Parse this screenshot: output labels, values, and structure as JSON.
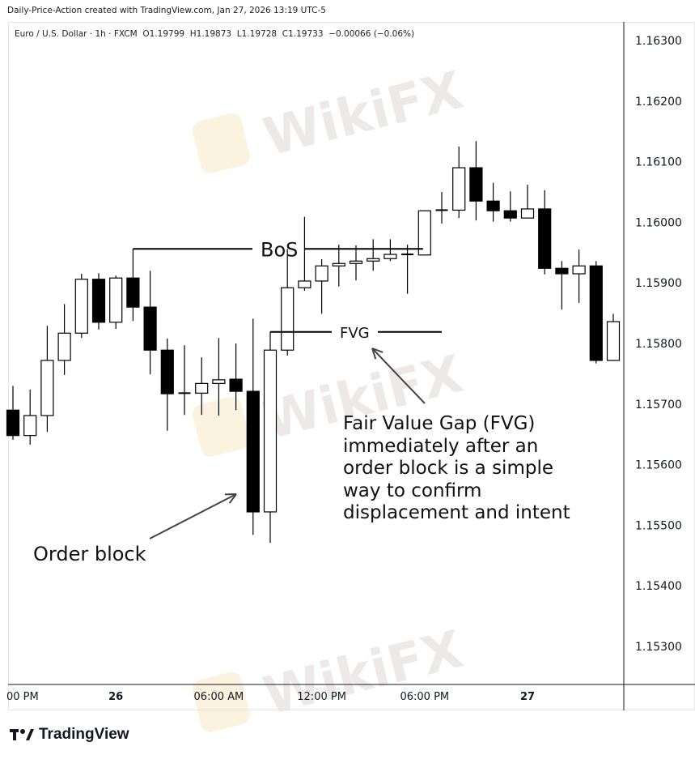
{
  "credit": "Daily-Price-Action created with TradingView.com, Jan 27, 2026 13:19 UTC-5",
  "legend": {
    "symbol": "Euro / U.S. Dollar · 1h · FXCM",
    "open": "O1.19799",
    "high": "H1.19873",
    "low": "L1.19728",
    "close": "C1.19733",
    "change": "−0.00066 (−0.06%)"
  },
  "colors": {
    "up_fill": "#ffffff",
    "down_fill": "#000000",
    "outline": "#000000",
    "watermark": "#d9d0d0"
  },
  "watermark": "WikiFX",
  "logo": {
    "name": "TradingView",
    "icon": "tradingview-logo-icon"
  },
  "chart_data": {
    "type": "candlestick",
    "interval": "1h",
    "ylim": [
      1.1527,
      1.1633
    ],
    "y_ticks": [
      "1.16300",
      "1.16200",
      "1.16100",
      "1.16000",
      "1.15900",
      "1.15800",
      "1.15700",
      "1.15600",
      "1.15500",
      "1.15400",
      "1.15300"
    ],
    "x_ticks": [
      {
        "label": "00 PM",
        "index": 0,
        "bold": false
      },
      {
        "label": "26",
        "index": 6,
        "bold": true
      },
      {
        "label": "06:00 AM",
        "index": 12,
        "bold": false
      },
      {
        "label": "12:00 PM",
        "index": 18,
        "bold": false
      },
      {
        "label": "06:00 PM",
        "index": 24,
        "bold": false
      },
      {
        "label": "27",
        "index": 30,
        "bold": true
      }
    ],
    "ohlc": [
      [
        1.1569,
        1.1573,
        1.15641,
        1.15648
      ],
      [
        1.15648,
        1.15724,
        1.15633,
        1.15681
      ],
      [
        1.15681,
        1.15829,
        1.15654,
        1.15772
      ],
      [
        1.15772,
        1.15865,
        1.15748,
        1.15817
      ],
      [
        1.15817,
        1.15915,
        1.15809,
        1.15906
      ],
      [
        1.15906,
        1.15916,
        1.15823,
        1.15835
      ],
      [
        1.15835,
        1.15912,
        1.15824,
        1.15908
      ],
      [
        1.15908,
        1.15956,
        1.15837,
        1.1586
      ],
      [
        1.1586,
        1.1592,
        1.15749,
        1.15789
      ],
      [
        1.15789,
        1.15808,
        1.15656,
        1.15717
      ],
      [
        1.15717,
        1.15797,
        1.15682,
        1.15718
      ],
      [
        1.15718,
        1.15777,
        1.15682,
        1.15734
      ],
      [
        1.15734,
        1.15809,
        1.15681,
        1.1574
      ],
      [
        1.15741,
        1.158,
        1.1569,
        1.15721
      ],
      [
        1.15721,
        1.15841,
        1.15484,
        1.15522
      ],
      [
        1.15522,
        1.15819,
        1.15471,
        1.15789
      ],
      [
        1.15789,
        1.15956,
        1.1578,
        1.15892
      ],
      [
        1.15892,
        1.16009,
        1.15887,
        1.15903
      ],
      [
        1.15903,
        1.15939,
        1.15849,
        1.15928
      ],
      [
        1.15928,
        1.15963,
        1.15894,
        1.15932
      ],
      [
        1.15932,
        1.15962,
        1.15904,
        1.15936
      ],
      [
        1.15936,
        1.15972,
        1.1592,
        1.1594
      ],
      [
        1.1594,
        1.15972,
        1.15936,
        1.15947
      ],
      [
        1.15947,
        1.15963,
        1.15882,
        1.15946
      ],
      [
        1.15946,
        1.1602,
        1.15945,
        1.16019
      ],
      [
        1.16019,
        1.1605,
        1.15998,
        1.1602
      ],
      [
        1.1602,
        1.16125,
        1.16007,
        1.1609
      ],
      [
        1.1609,
        1.16134,
        1.16003,
        1.16035
      ],
      [
        1.16035,
        1.16065,
        1.16001,
        1.16019
      ],
      [
        1.16019,
        1.16051,
        1.16001,
        1.16007
      ],
      [
        1.16007,
        1.16062,
        1.16007,
        1.16022
      ],
      [
        1.16022,
        1.16053,
        1.15914,
        1.15924
      ],
      [
        1.15924,
        1.15936,
        1.15856,
        1.15915
      ],
      [
        1.15915,
        1.15955,
        1.15867,
        1.15928
      ],
      [
        1.15928,
        1.15936,
        1.15767,
        1.15772
      ],
      [
        1.15772,
        1.15849,
        1.15771,
        1.15836
      ]
    ],
    "annotations": {
      "bos": {
        "label": "BoS",
        "price": 1.15956,
        "from_index": 7,
        "to_index": 24
      },
      "fvg": {
        "label": "FVG",
        "price": 1.15819,
        "from_index": 15,
        "to_index": 25
      },
      "order_block": {
        "label": "Order block",
        "target_index": 14
      },
      "fvg_note": {
        "lines": [
          "Fair Value Gap (FVG)",
          "immediately after an",
          "order block is a simple",
          "way to confirm",
          "displacement and intent"
        ]
      }
    }
  }
}
